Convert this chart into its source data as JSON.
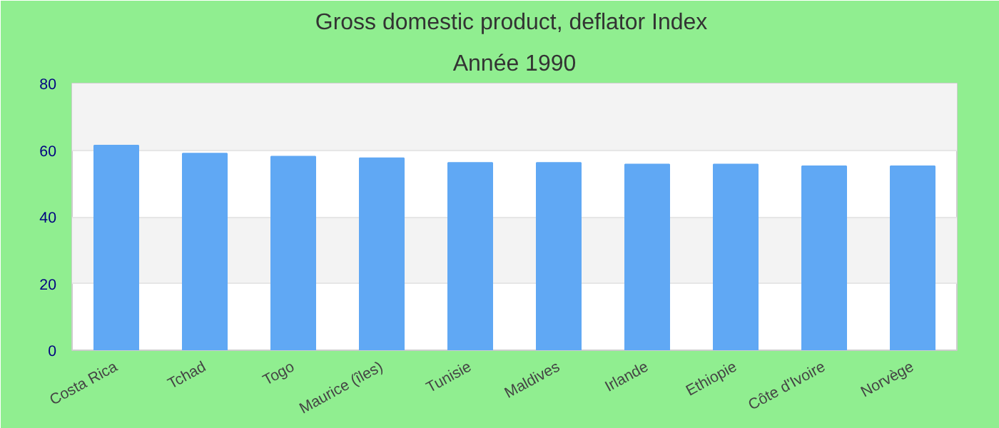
{
  "chart_data": {
    "type": "bar",
    "title": "Gross domestic product, deflator  Index",
    "subtitle": "Année 1990",
    "categories": [
      "Costa Rica",
      "Tchad",
      "Togo",
      "Maurice (îles)",
      "Tunisie",
      "Maldives",
      "Irlande",
      "Ethiopie",
      "Côte d'Ivoire",
      "Norvège"
    ],
    "values": [
      61.4,
      59.0,
      58.1,
      57.6,
      56.2,
      56.2,
      55.7,
      55.7,
      55.2,
      55.2
    ],
    "color": "#60a8f4",
    "ylim": [
      0,
      80
    ],
    "yticks": [
      0,
      20,
      40,
      60,
      80
    ],
    "grid": "y"
  }
}
